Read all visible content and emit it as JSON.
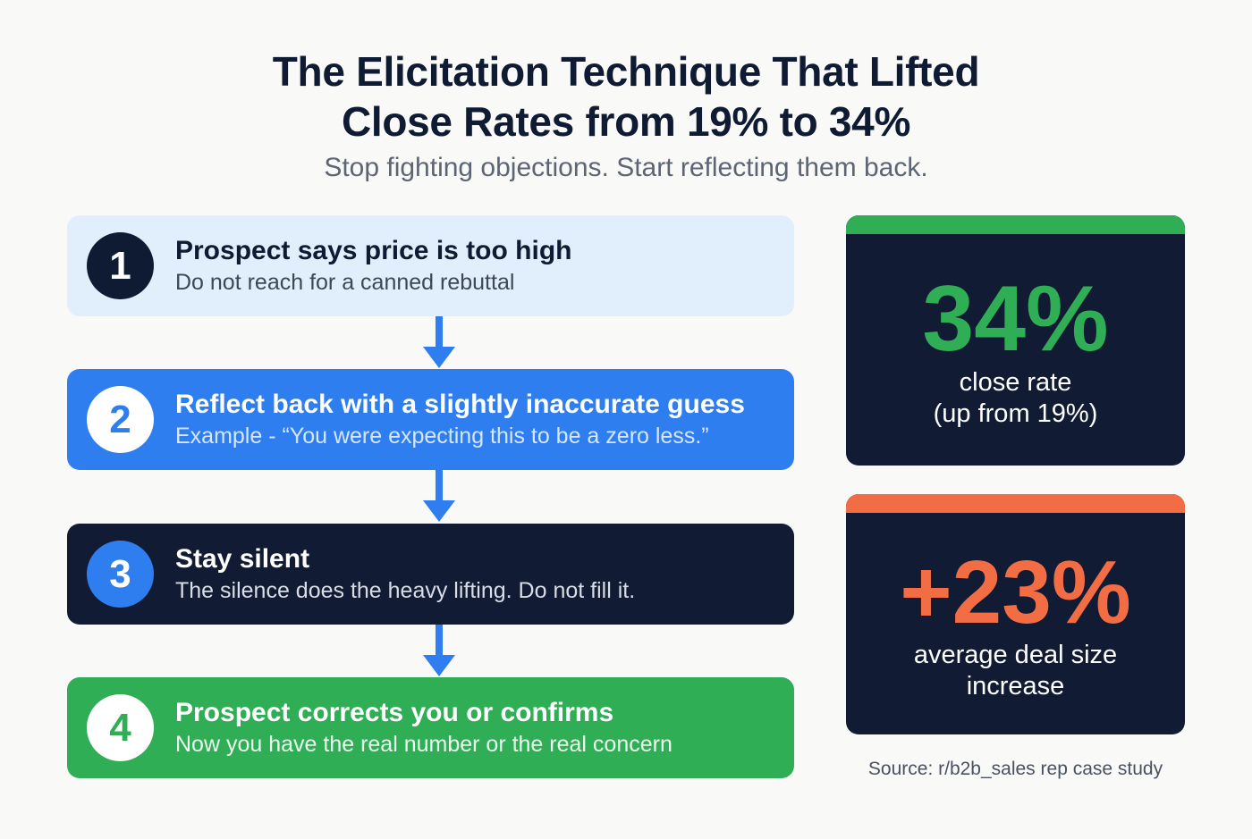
{
  "header": {
    "title_line1": "The Elicitation Technique That Lifted",
    "title_line2": "Close Rates from 19% to 34%",
    "subtitle": "Stop fighting objections. Start reflecting them back."
  },
  "steps": [
    {
      "number": "1",
      "heading": "Prospect says price is too high",
      "description": "Do not reach for a canned rebuttal"
    },
    {
      "number": "2",
      "heading": "Reflect back with a slightly inaccurate guess",
      "description": "Example - “You were expecting this to be a zero less.”"
    },
    {
      "number": "3",
      "heading": "Stay silent",
      "description": "The silence does the heavy lifting. Do not fill it."
    },
    {
      "number": "4",
      "heading": "Prospect corrects you or confirms",
      "description": "Now you have the real number or the real concern"
    }
  ],
  "stats": [
    {
      "value": "34%",
      "caption_line1": "close rate",
      "caption_line2": "(up from 19%)",
      "accent": "#2fae55"
    },
    {
      "value": "+23%",
      "caption_line1": "average deal size",
      "caption_line2": "increase",
      "accent": "#f26d44"
    }
  ],
  "source": "Source: r/b2b_sales rep case study",
  "colors": {
    "navy": "#111b33",
    "blue": "#2f7ef0",
    "green": "#2fae55",
    "orange": "#f26d44",
    "light_blue": "#e1eefc"
  }
}
